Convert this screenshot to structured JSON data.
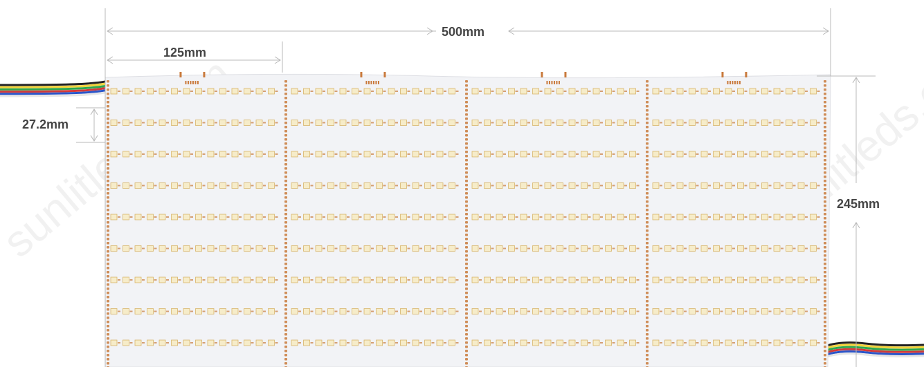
{
  "dimensions": {
    "total_width": "500mm",
    "segment_width": "125mm",
    "row_pitch": "27.2mm",
    "total_height": "245mm"
  },
  "panel": {
    "segments": 4,
    "rows": 9,
    "board_color": "#f2f3f6",
    "trace_color": "#c97a3c",
    "led_color": "#f6ecc9"
  },
  "wires": {
    "colors": [
      "#222222",
      "#f2d23a",
      "#2fa84f",
      "#d23a3a",
      "#2a55c9",
      "#ffffff"
    ]
  },
  "watermark": {
    "text": "sunlitleds.com"
  }
}
